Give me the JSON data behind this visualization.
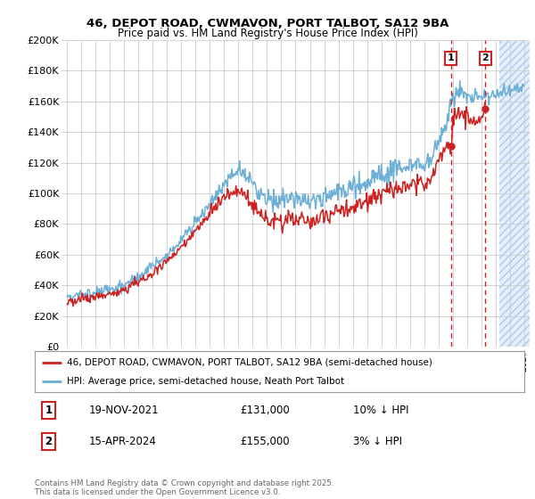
{
  "title_line1": "46, DEPOT ROAD, CWMAVON, PORT TALBOT, SA12 9BA",
  "title_line2": "Price paid vs. HM Land Registry's House Price Index (HPI)",
  "ylabel_ticks": [
    "£0",
    "£20K",
    "£40K",
    "£60K",
    "£80K",
    "£100K",
    "£120K",
    "£140K",
    "£160K",
    "£180K",
    "£200K"
  ],
  "ytick_values": [
    0,
    20000,
    40000,
    60000,
    80000,
    100000,
    120000,
    140000,
    160000,
    180000,
    200000
  ],
  "hpi_color": "#6baed6",
  "price_color": "#cc2222",
  "sale1_date": "19-NOV-2021",
  "sale1_price": 131000,
  "sale1_note": "10% ↓ HPI",
  "sale2_date": "15-APR-2024",
  "sale2_price": 155000,
  "sale2_note": "3% ↓ HPI",
  "legend_label1": "46, DEPOT ROAD, CWMAVON, PORT TALBOT, SA12 9BA (semi-detached house)",
  "legend_label2": "HPI: Average price, semi-detached house, Neath Port Talbot",
  "footer": "Contains HM Land Registry data © Crown copyright and database right 2025.\nThis data is licensed under the Open Government Licence v3.0.",
  "bg_color": "#ffffff",
  "grid_color": "#cccccc",
  "sale1_year": 2021.89,
  "sale2_year": 2024.29,
  "hatch_color": "#d0e4f7",
  "future_start": 2025.3,
  "xlim_left": 1994.6,
  "xlim_right": 2027.4
}
